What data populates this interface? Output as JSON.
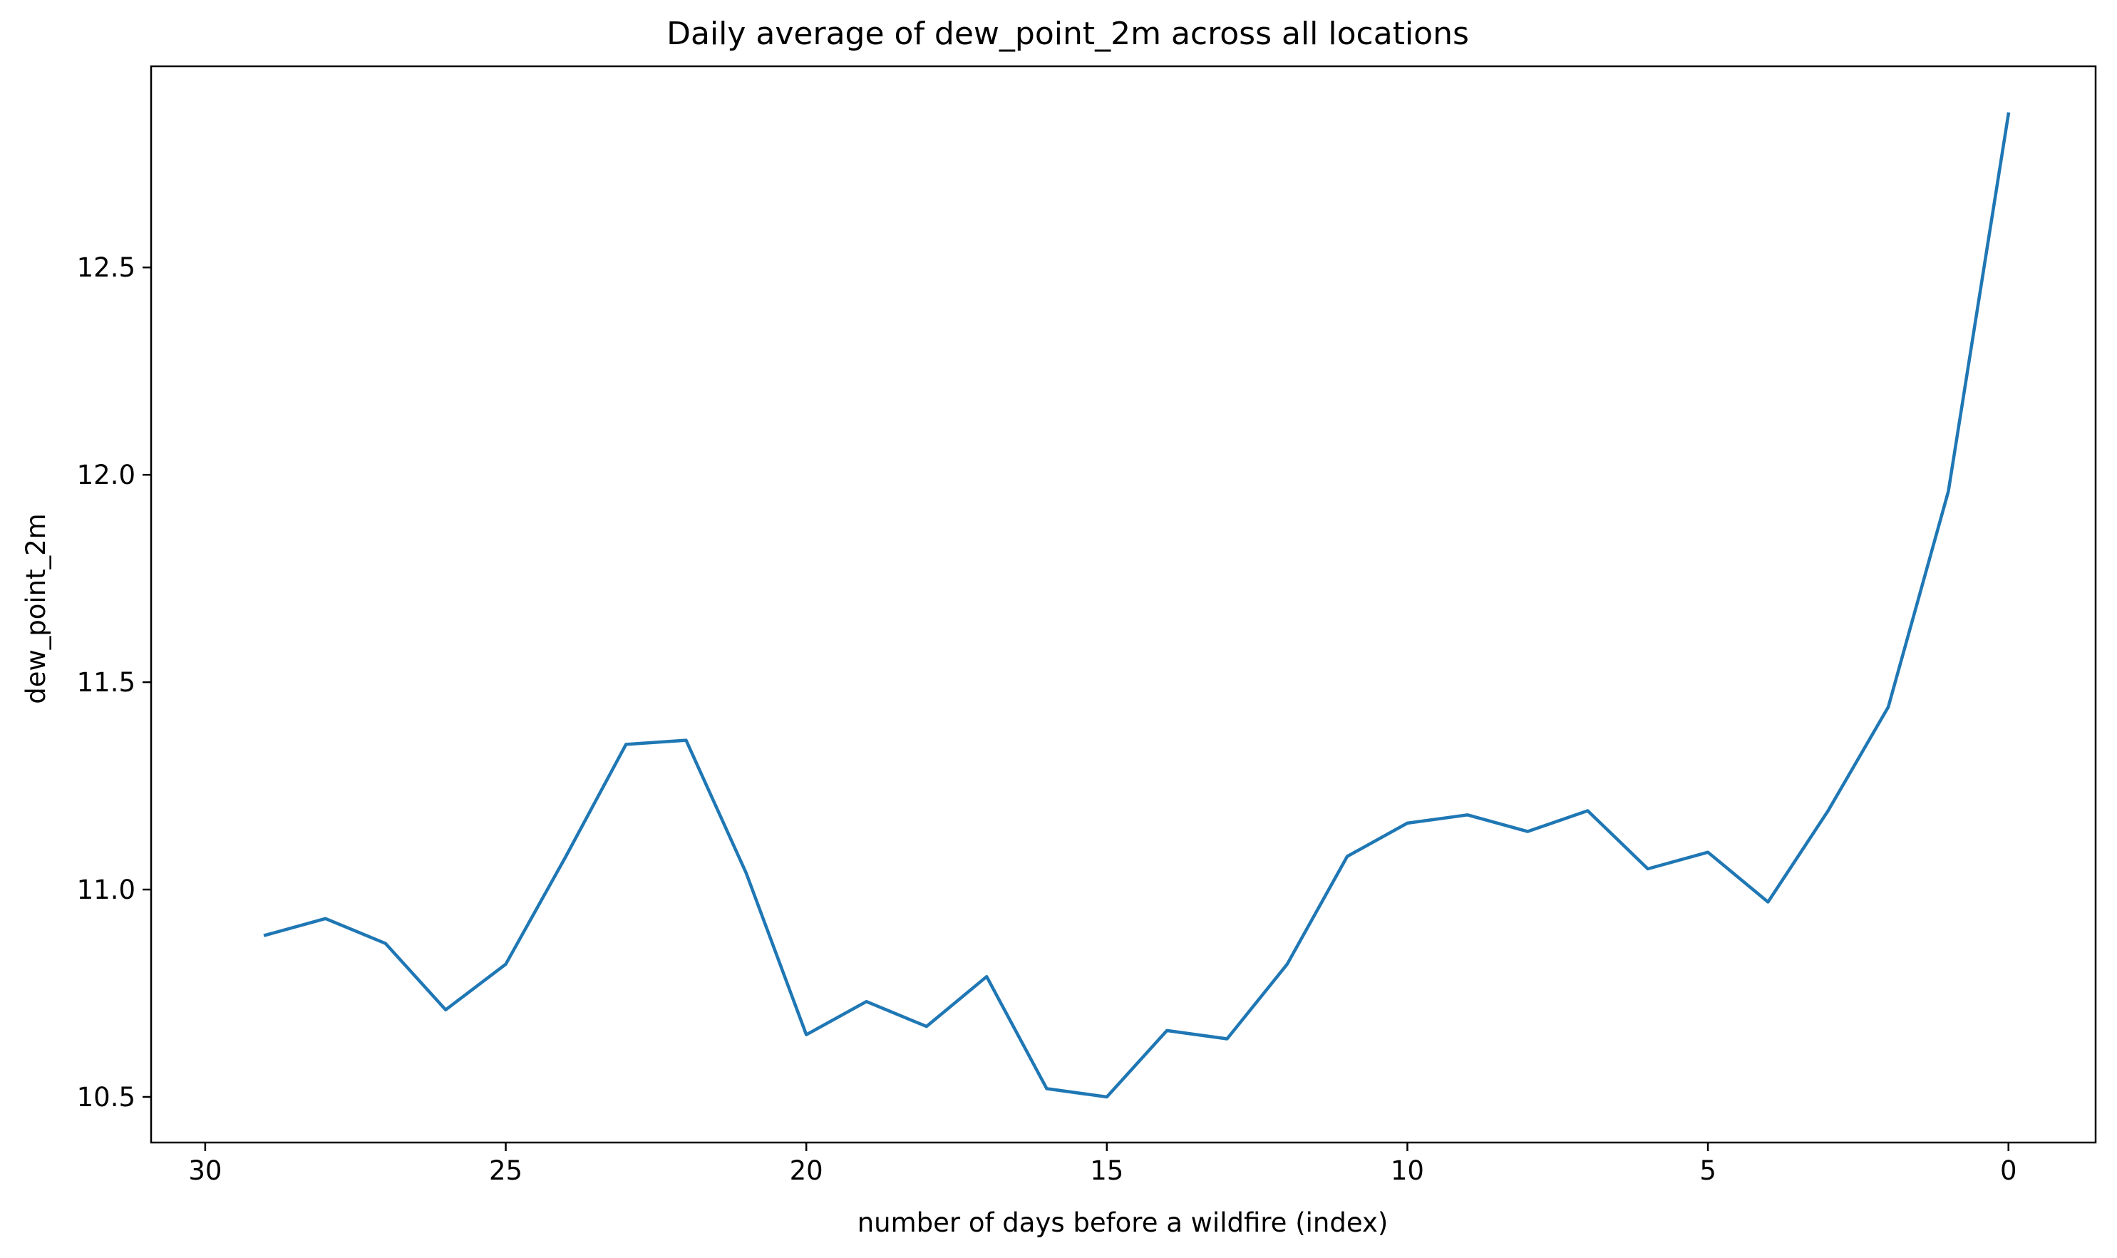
{
  "chart_data": {
    "type": "line",
    "title": "Daily average of dew_point_2m across all locations",
    "xlabel": "number of days before a wildfire (index)",
    "ylabel": "dew_point_2m",
    "x_inverted": true,
    "xlim": [
      30.9,
      -1.45
    ],
    "ylim": [
      10.39,
      12.985
    ],
    "x_ticks": [
      30,
      25,
      20,
      15,
      10,
      5,
      0
    ],
    "y_ticks": [
      10.5,
      11.0,
      11.5,
      12.0,
      12.5
    ],
    "x_tick_labels": [
      "30",
      "25",
      "20",
      "15",
      "10",
      "5",
      "0"
    ],
    "y_tick_labels": [
      "10.5",
      "11.0",
      "11.5",
      "12.0",
      "12.5"
    ],
    "grid": false,
    "series": [
      {
        "color": "#1f77b4",
        "x": [
          29,
          28,
          27,
          26,
          25,
          24,
          23,
          22,
          21,
          20,
          19,
          18,
          17,
          16,
          15,
          14,
          13,
          12,
          11,
          10,
          9,
          8,
          7,
          6,
          5,
          4,
          3,
          2,
          1,
          0
        ],
        "values": [
          10.89,
          10.93,
          10.87,
          10.71,
          10.82,
          11.08,
          11.35,
          11.36,
          11.04,
          10.65,
          10.73,
          10.67,
          10.79,
          10.52,
          10.5,
          10.66,
          10.64,
          10.82,
          11.08,
          11.16,
          11.18,
          11.14,
          11.19,
          11.05,
          11.09,
          10.97,
          11.19,
          11.44,
          11.96,
          12.87
        ]
      }
    ]
  }
}
